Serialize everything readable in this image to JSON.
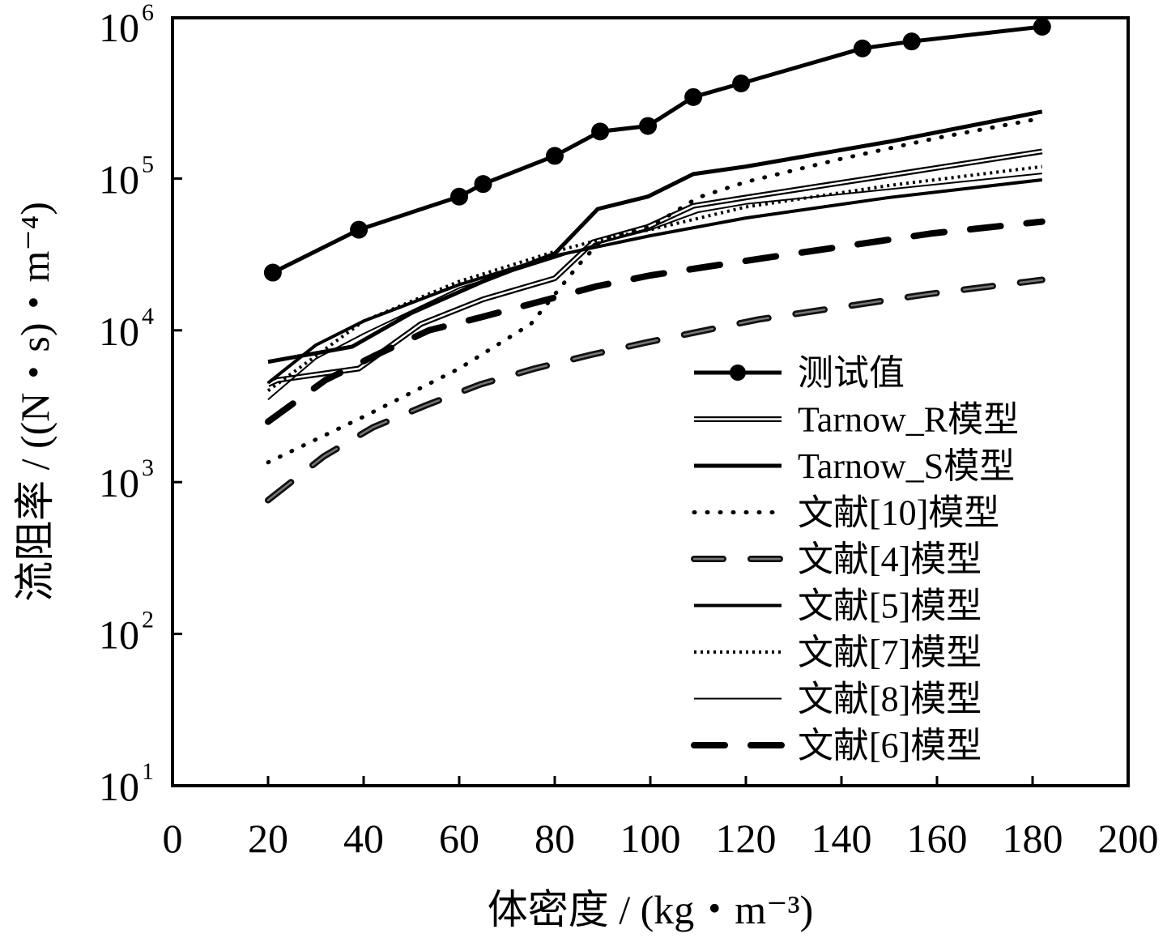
{
  "chart_data": {
    "type": "line",
    "title": "",
    "xlabel": "体密度 / (kg・m⁻³)",
    "ylabel": "流阻率 / ((N・s)・m⁻⁴)",
    "xlim": [
      0,
      200
    ],
    "ylim": [
      10,
      1000000
    ],
    "yscale": "log",
    "x_ticks": [
      "0",
      "20",
      "40",
      "60",
      "80",
      "100",
      "120",
      "140",
      "160",
      "180",
      "200"
    ],
    "y_ticks": [
      {
        "base": "10",
        "exp": "1"
      },
      {
        "base": "10",
        "exp": "2"
      },
      {
        "base": "10",
        "exp": "3"
      },
      {
        "base": "10",
        "exp": "4"
      },
      {
        "base": "10",
        "exp": "5"
      },
      {
        "base": "10",
        "exp": "6"
      }
    ],
    "legend_position": "bottom-right",
    "series": [
      {
        "name": "测试值",
        "style": "marker",
        "x": [
          21,
          39,
          60,
          65,
          80,
          89.5,
          99.5,
          109,
          119,
          144.4,
          154.7,
          182
        ],
        "values": [
          24000,
          46000,
          76000,
          92000,
          141000,
          204000,
          222000,
          344000,
          423000,
          720000,
          800000,
          1000000
        ]
      },
      {
        "name": "Tarnow_R模型",
        "style": "double",
        "x": [
          20,
          22,
          39,
          52,
          65,
          80,
          88,
          99.5,
          109,
          120,
          150,
          182
        ],
        "values": [
          4400,
          4700,
          5600,
          11000,
          16000,
          22000,
          38000,
          48000,
          66000,
          75000,
          105000,
          151000
        ]
      },
      {
        "name": "Tarnow_S模型",
        "style": "thick",
        "x": [
          20,
          37.6,
          50,
          65,
          80,
          89,
          99.5,
          109,
          120,
          150,
          182
        ],
        "values": [
          6200,
          7800,
          13000,
          21000,
          32000,
          63000,
          76000,
          107000,
          120000,
          175000,
          276000
        ]
      },
      {
        "name": "文献[10]模型",
        "style": "sparse-dot",
        "x": [
          20,
          40,
          60,
          75,
          85,
          90,
          100,
          110,
          120,
          140,
          160,
          182
        ],
        "values": [
          1350,
          2700,
          5600,
          11000,
          27000,
          40000,
          48000,
          75000,
          95000,
          135000,
          185000,
          250000
        ]
      },
      {
        "name": "文献[4]模型",
        "style": "gray-dash",
        "x": [
          20,
          31.7,
          42,
          53,
          64.4,
          75.8,
          87.6,
          99,
          122.7,
          158,
          182
        ],
        "values": [
          760,
          1480,
          2300,
          3200,
          4400,
          5600,
          6900,
          8300,
          11800,
          17300,
          21500
        ]
      },
      {
        "name": "文献[5]模型",
        "style": "solid",
        "x": [
          20,
          30,
          40,
          60,
          80,
          100,
          120,
          150,
          182
        ],
        "values": [
          4500,
          8000,
          11500,
          20000,
          31000,
          42000,
          55000,
          75000,
          98000
        ]
      },
      {
        "name": "文献[7]模型",
        "style": "dense-dot",
        "x": [
          20,
          40,
          60,
          80,
          90,
          100,
          120,
          150,
          182
        ],
        "values": [
          4000,
          11500,
          21000,
          33000,
          40000,
          46000,
          65000,
          90000,
          120000
        ]
      },
      {
        "name": "文献[8]模型",
        "style": "thin",
        "x": [
          20,
          30,
          40,
          60,
          80,
          90,
          100,
          110,
          120,
          150,
          182
        ],
        "values": [
          3500,
          6500,
          9500,
          19000,
          30000,
          38000,
          46000,
          60000,
          68000,
          85000,
          108000
        ]
      },
      {
        "name": "文献[6]模型",
        "style": "thick-dash",
        "x": [
          20,
          32,
          42.7,
          53.7,
          65,
          77,
          88.8,
          100,
          124,
          159,
          182
        ],
        "values": [
          2500,
          4700,
          6900,
          10000,
          12300,
          15500,
          19500,
          23000,
          30000,
          43500,
          52000
        ]
      }
    ]
  }
}
